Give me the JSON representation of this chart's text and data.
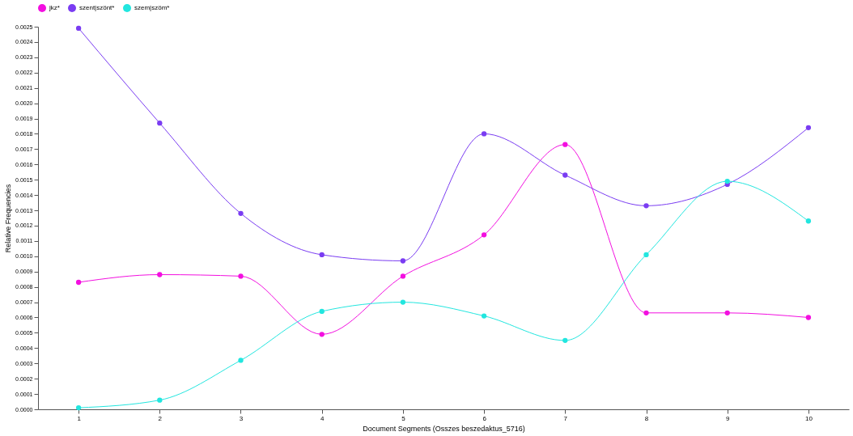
{
  "chart_data": {
    "type": "line",
    "xlabel": "Document Segments (Osszes beszedaktus_5716)",
    "ylabel": "Relative Frequencies",
    "categories": [
      "1",
      "2",
      "3",
      "4",
      "5",
      "6",
      "7",
      "8",
      "9",
      "10"
    ],
    "series": [
      {
        "name": "jkz*",
        "color": "#f30fe0",
        "values": [
          0.00083,
          0.00088,
          0.00087,
          0.00049,
          0.00087,
          0.00114,
          0.00173,
          0.00063,
          0.00063,
          0.0006
        ]
      },
      {
        "name": "szent|szönt*",
        "color": "#7a3cf2",
        "values": [
          0.00249,
          0.00187,
          0.00128,
          0.00101,
          0.00097,
          0.0018,
          0.00153,
          0.00133,
          0.00147,
          0.00184
        ]
      },
      {
        "name": "szem|szöm*",
        "color": "#22e6df",
        "values": [
          1e-05,
          6e-05,
          0.00032,
          0.00064,
          0.0007,
          0.00061,
          0.00045,
          0.00101,
          0.00149,
          0.00123
        ]
      }
    ],
    "ylim": [
      0,
      0.0025
    ],
    "yticks": [
      {
        "value": 0,
        "label": "0.0000"
      },
      {
        "value": 0.0001,
        "label": "0.0001"
      },
      {
        "value": 0.0002,
        "label": "0.0002"
      },
      {
        "value": 0.0003,
        "label": "0.0003"
      },
      {
        "value": 0.0004,
        "label": "0.0004"
      },
      {
        "value": 0.0005,
        "label": "0.0005"
      },
      {
        "value": 0.0006,
        "label": "0.0006"
      },
      {
        "value": 0.0007,
        "label": "0.0007"
      },
      {
        "value": 0.0008,
        "label": "0.0008"
      },
      {
        "value": 0.0009,
        "label": "0.0009"
      },
      {
        "value": 0.001,
        "label": "0.0010"
      },
      {
        "value": 0.0011,
        "label": "0.0011"
      },
      {
        "value": 0.0012,
        "label": "0.0012"
      },
      {
        "value": 0.0013,
        "label": "0.0013"
      },
      {
        "value": 0.0014,
        "label": "0.0014"
      },
      {
        "value": 0.0015,
        "label": "0.0015"
      },
      {
        "value": 0.0016,
        "label": "0.0016"
      },
      {
        "value": 0.0017,
        "label": "0.0017"
      },
      {
        "value": 0.0018,
        "label": "0.0018"
      },
      {
        "value": 0.0019,
        "label": "0.0019"
      },
      {
        "value": 0.002,
        "label": "0.0020"
      },
      {
        "value": 0.0021,
        "label": "0.0021"
      },
      {
        "value": 0.0022,
        "label": "0.0022"
      },
      {
        "value": 0.0023,
        "label": "0.0023"
      },
      {
        "value": 0.0024,
        "label": "0.0024"
      },
      {
        "value": 0.0025,
        "label": "0.0025"
      }
    ],
    "legend": "top",
    "grid": false,
    "marker": "circle",
    "line_style": "solid"
  }
}
